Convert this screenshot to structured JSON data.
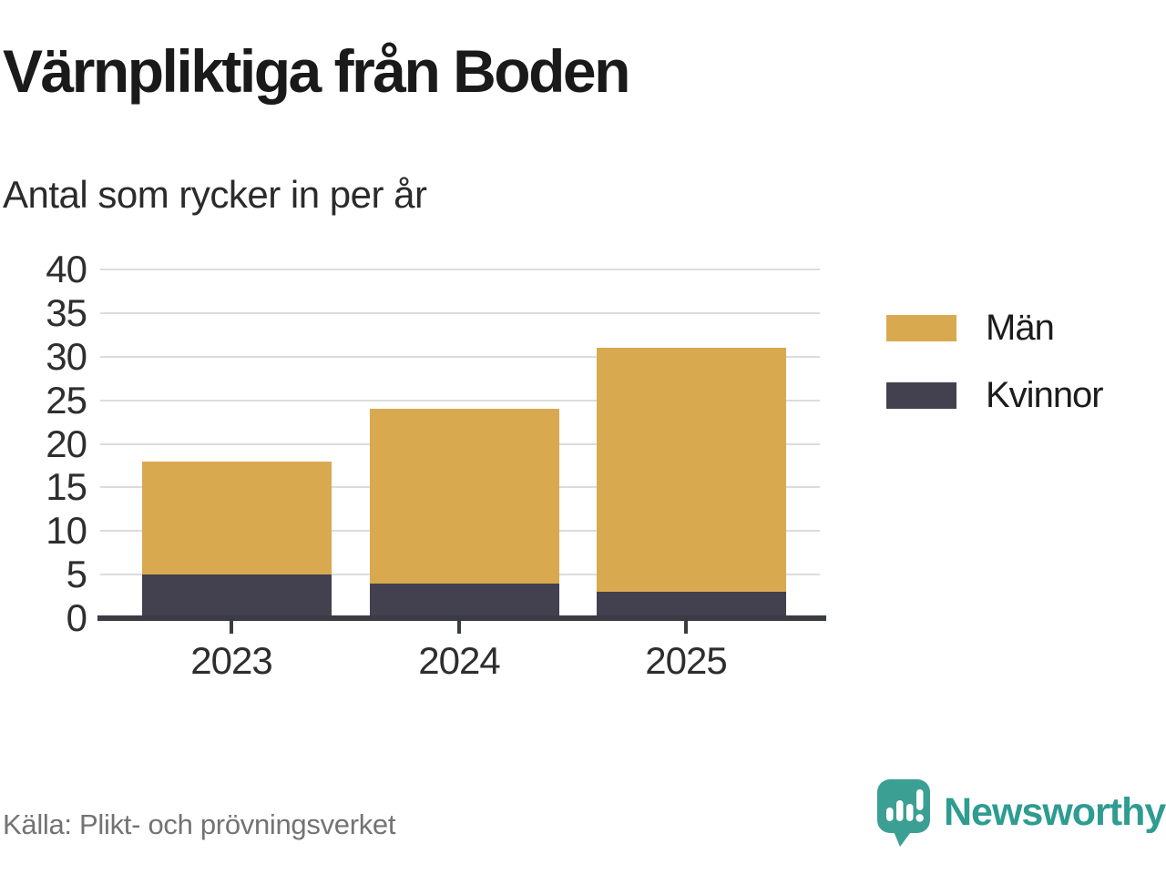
{
  "title": "Värnpliktiga från Boden",
  "subtitle": "Antal som rycker in per år",
  "source": "Källa: Plikt- och prövningsverket",
  "brand": {
    "name": "Newsworthy",
    "icon": "speech-bubble-bar-chart-icon",
    "icon_color": "#3c9f94",
    "text_color": "#2e9c90"
  },
  "colors": {
    "men": "#d9a950",
    "women": "#434150",
    "gridline": "#dcdcdc",
    "axis": "#3b3b44",
    "title": "#1a1a1a",
    "source_text": "#737373"
  },
  "legend": [
    {
      "label": "Män",
      "color": "#d9a950"
    },
    {
      "label": "Kvinnor",
      "color": "#434150"
    }
  ],
  "chart_data": {
    "type": "bar",
    "stacked": true,
    "categories": [
      "2023",
      "2024",
      "2025"
    ],
    "series": [
      {
        "name": "Män",
        "color": "#d9a950",
        "values": [
          13,
          20,
          28
        ]
      },
      {
        "name": "Kvinnor",
        "color": "#434150",
        "values": [
          5,
          4,
          3
        ]
      }
    ],
    "totals": [
      18,
      24,
      31
    ],
    "title": "Värnpliktiga från Boden",
    "subtitle": "Antal som rycker in per år",
    "xlabel": "",
    "ylabel": "",
    "ylim": [
      0,
      40
    ],
    "yticks": [
      0,
      5,
      10,
      15,
      20,
      25,
      30,
      35,
      40
    ],
    "grid": true,
    "legend_position": "right"
  }
}
